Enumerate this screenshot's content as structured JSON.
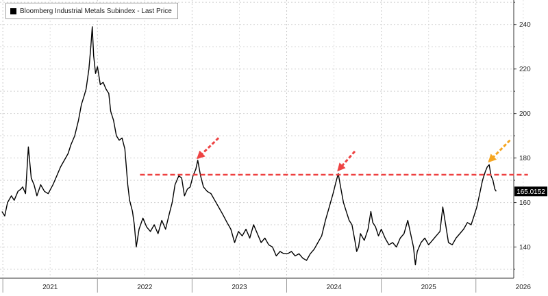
{
  "chart_data": {
    "type": "line",
    "series": [
      {
        "name": "Bloomberg Industrial Metals Subindex - Last Price",
        "color": "#000000",
        "points": [
          [
            2020.99,
            156
          ],
          [
            2021.02,
            154
          ],
          [
            2021.05,
            160
          ],
          [
            2021.09,
            163
          ],
          [
            2021.12,
            161
          ],
          [
            2021.16,
            165
          ],
          [
            2021.19,
            166
          ],
          [
            2021.21,
            167
          ],
          [
            2021.24,
            164
          ],
          [
            2021.27,
            185
          ],
          [
            2021.3,
            171
          ],
          [
            2021.33,
            168
          ],
          [
            2021.36,
            163
          ],
          [
            2021.4,
            168
          ],
          [
            2021.44,
            165
          ],
          [
            2021.48,
            164
          ],
          [
            2021.53,
            168
          ],
          [
            2021.57,
            172
          ],
          [
            2021.61,
            176
          ],
          [
            2021.65,
            179
          ],
          [
            2021.69,
            182
          ],
          [
            2021.72,
            186
          ],
          [
            2021.76,
            190
          ],
          [
            2021.8,
            197
          ],
          [
            2021.83,
            204
          ],
          [
            2021.86,
            208
          ],
          [
            2021.88,
            211
          ],
          [
            2021.91,
            220
          ],
          [
            2021.93,
            230
          ],
          [
            2021.945,
            239
          ],
          [
            2021.96,
            226
          ],
          [
            2021.98,
            218
          ],
          [
            2022.0,
            221
          ],
          [
            2022.03,
            213
          ],
          [
            2022.06,
            214
          ],
          [
            2022.09,
            211
          ],
          [
            2022.12,
            209
          ],
          [
            2022.14,
            201
          ],
          [
            2022.17,
            197
          ],
          [
            2022.2,
            190
          ],
          [
            2022.23,
            188
          ],
          [
            2022.26,
            189
          ],
          [
            2022.29,
            184
          ],
          [
            2022.32,
            168
          ],
          [
            2022.34,
            161
          ],
          [
            2022.37,
            156
          ],
          [
            2022.39,
            150
          ],
          [
            2022.41,
            140
          ],
          [
            2022.44,
            148
          ],
          [
            2022.48,
            153
          ],
          [
            2022.52,
            149
          ],
          [
            2022.56,
            147
          ],
          [
            2022.6,
            150
          ],
          [
            2022.64,
            146
          ],
          [
            2022.68,
            152
          ],
          [
            2022.72,
            148
          ],
          [
            2022.76,
            155
          ],
          [
            2022.79,
            160
          ],
          [
            2022.82,
            168
          ],
          [
            2022.86,
            172
          ],
          [
            2022.89,
            171
          ],
          [
            2022.92,
            163
          ],
          [
            2022.95,
            166
          ],
          [
            2022.98,
            167
          ],
          [
            2023.01,
            172
          ],
          [
            2023.04,
            175
          ],
          [
            2023.06,
            179
          ],
          [
            2023.09,
            172
          ],
          [
            2023.12,
            167
          ],
          [
            2023.16,
            165
          ],
          [
            2023.2,
            164
          ],
          [
            2023.24,
            161
          ],
          [
            2023.28,
            158
          ],
          [
            2023.32,
            155
          ],
          [
            2023.37,
            151
          ],
          [
            2023.41,
            148
          ],
          [
            2023.45,
            142
          ],
          [
            2023.49,
            147
          ],
          [
            2023.53,
            145
          ],
          [
            2023.57,
            148
          ],
          [
            2023.61,
            144
          ],
          [
            2023.65,
            150
          ],
          [
            2023.69,
            146
          ],
          [
            2023.73,
            142
          ],
          [
            2023.77,
            144
          ],
          [
            2023.81,
            141
          ],
          [
            2023.85,
            140
          ],
          [
            2023.89,
            136
          ],
          [
            2023.93,
            138
          ],
          [
            2023.97,
            137
          ],
          [
            2024.01,
            137
          ],
          [
            2024.05,
            138
          ],
          [
            2024.09,
            136
          ],
          [
            2024.13,
            137
          ],
          [
            2024.17,
            135
          ],
          [
            2024.21,
            134
          ],
          [
            2024.25,
            137
          ],
          [
            2024.29,
            139
          ],
          [
            2024.33,
            142
          ],
          [
            2024.37,
            145
          ],
          [
            2024.41,
            152
          ],
          [
            2024.45,
            158
          ],
          [
            2024.49,
            164
          ],
          [
            2024.52,
            169
          ],
          [
            2024.545,
            173
          ],
          [
            2024.57,
            167
          ],
          [
            2024.6,
            160
          ],
          [
            2024.63,
            156
          ],
          [
            2024.66,
            152
          ],
          [
            2024.69,
            150
          ],
          [
            2024.72,
            143
          ],
          [
            2024.74,
            138
          ],
          [
            2024.76,
            140
          ],
          [
            2024.78,
            146
          ],
          [
            2024.82,
            143
          ],
          [
            2024.86,
            148
          ],
          [
            2024.89,
            156
          ],
          [
            2024.91,
            151
          ],
          [
            2024.94,
            149
          ],
          [
            2024.97,
            145
          ],
          [
            2025.0,
            148
          ],
          [
            2025.04,
            144
          ],
          [
            2025.08,
            141
          ],
          [
            2025.12,
            142
          ],
          [
            2025.16,
            140
          ],
          [
            2025.2,
            144
          ],
          [
            2025.24,
            146
          ],
          [
            2025.28,
            152
          ],
          [
            2025.31,
            146
          ],
          [
            2025.34,
            140
          ],
          [
            2025.36,
            132
          ],
          [
            2025.38,
            138
          ],
          [
            2025.42,
            142
          ],
          [
            2025.46,
            144
          ],
          [
            2025.5,
            141
          ],
          [
            2025.54,
            143
          ],
          [
            2025.58,
            145
          ],
          [
            2025.62,
            147
          ],
          [
            2025.65,
            158
          ],
          [
            2025.68,
            150
          ],
          [
            2025.71,
            142
          ],
          [
            2025.75,
            141
          ],
          [
            2025.79,
            144
          ],
          [
            2025.83,
            146
          ],
          [
            2025.87,
            148
          ],
          [
            2025.91,
            151
          ],
          [
            2025.95,
            150
          ],
          [
            2025.98,
            154
          ],
          [
            2026.01,
            158
          ],
          [
            2026.04,
            164
          ],
          [
            2026.07,
            170
          ],
          [
            2026.1,
            174
          ],
          [
            2026.12,
            176
          ],
          [
            2026.14,
            177
          ],
          [
            2026.16,
            172
          ],
          [
            2026.18,
            170
          ],
          [
            2026.2,
            166
          ],
          [
            2026.215,
            165
          ]
        ]
      }
    ],
    "x_tick_labels": [
      "2021",
      "2022",
      "2023",
      "2024",
      "2025",
      "2026"
    ],
    "y_ticks": [
      140,
      160,
      180,
      200,
      220,
      240
    ],
    "y_axis_side": "right",
    "last_value_label": "165.0152",
    "reference_line": {
      "y": 172.5,
      "x_range": [
        2022.45,
        2026.55
      ],
      "color": "#ee4040",
      "style": "dashed"
    },
    "arrows": [
      {
        "tip": [
          2023.06,
          180
        ],
        "tail": [
          2023.28,
          189
        ],
        "color": "#ee4444"
      },
      {
        "tip": [
          2024.545,
          174.5
        ],
        "tail": [
          2024.72,
          183
        ],
        "color": "#ee4444"
      },
      {
        "tip": [
          2026.14,
          178.5
        ],
        "tail": [
          2026.36,
          188
        ],
        "color": "#f5a623"
      }
    ],
    "xlim": [
      2020.97,
      2026.4
    ],
    "ylim": [
      126,
      251
    ],
    "grid": true,
    "legend_position": "top-left"
  }
}
